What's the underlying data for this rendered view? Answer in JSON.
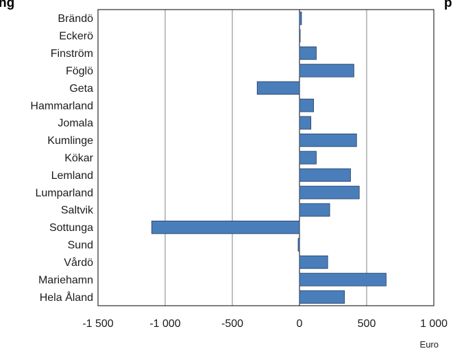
{
  "chart_data": {
    "type": "bar",
    "orientation": "horizontal",
    "title": "",
    "title_visible_fragment": "ng",
    "title_visible_fragment_right": "p",
    "unit": "Euro",
    "xlim": [
      -1500,
      1000
    ],
    "x_ticks": [
      -1500,
      -1000,
      -500,
      0,
      500,
      1000
    ],
    "x_tick_labels": [
      "-1 500",
      "-1 000",
      "-500",
      "0",
      "500",
      "1 000"
    ],
    "grid": "vertical",
    "legend": "none",
    "colors": {
      "bar": "#4a7ebb",
      "bar_border": "#1f3a5f",
      "grid": "#808080",
      "axis": "#000000"
    },
    "categories": [
      "Brändö",
      "Eckerö",
      "Finström",
      "Föglö",
      "Geta",
      "Hammarland",
      "Jomala",
      "Kumlinge",
      "Kökar",
      "Lemland",
      "Lumparland",
      "Saltvik",
      "Sottunga",
      "Sund",
      "Vårdö",
      "Mariehamn",
      "Hela Åland"
    ],
    "values": [
      15,
      5,
      125,
      405,
      -315,
      105,
      85,
      425,
      125,
      380,
      445,
      225,
      -1100,
      -10,
      210,
      645,
      335
    ]
  }
}
